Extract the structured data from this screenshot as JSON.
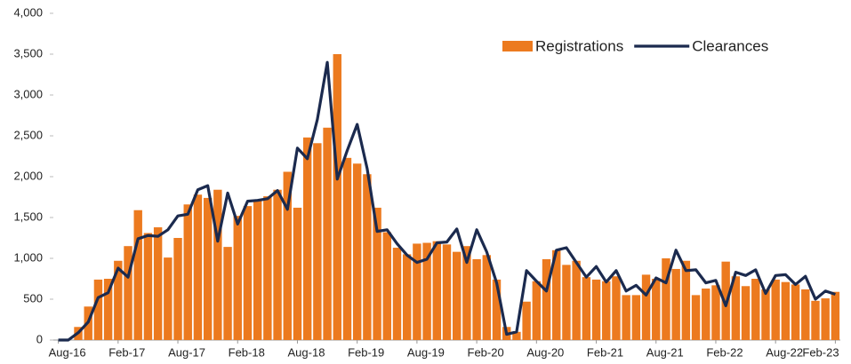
{
  "chart_data": {
    "type": "bar-line",
    "categories": [
      "Aug-16",
      null,
      null,
      null,
      null,
      null,
      "Feb-17",
      null,
      null,
      null,
      null,
      null,
      "Aug-17",
      null,
      null,
      null,
      null,
      null,
      "Feb-18",
      null,
      null,
      null,
      null,
      null,
      "Aug-18",
      null,
      null,
      null,
      null,
      null,
      "Feb-19",
      null,
      null,
      null,
      null,
      null,
      "Aug-19",
      null,
      null,
      null,
      null,
      null,
      "Feb-20",
      null,
      null,
      null,
      null,
      null,
      "Aug-20",
      null,
      null,
      null,
      null,
      null,
      "Feb-21",
      null,
      null,
      null,
      null,
      null,
      "Aug-21",
      null,
      null,
      null,
      null,
      null,
      "Feb-22",
      null,
      null,
      null,
      null,
      null,
      "Aug-22",
      null,
      null,
      null,
      null,
      null,
      "Feb-23"
    ],
    "series": [
      {
        "name": "Registrations",
        "kind": "bar",
        "color": "#ec7a1f",
        "values": [
          0,
          0,
          160,
          410,
          740,
          750,
          970,
          1150,
          1590,
          1310,
          1380,
          1010,
          1250,
          1660,
          1780,
          1740,
          1840,
          1140,
          1520,
          1640,
          1710,
          1760,
          1840,
          2060,
          1620,
          2480,
          2410,
          2600,
          3500,
          2230,
          2160,
          2030,
          1620,
          1320,
          1130,
          1050,
          1180,
          1190,
          1210,
          1170,
          1080,
          1150,
          990,
          1040,
          740,
          160,
          100,
          470,
          720,
          990,
          1100,
          920,
          970,
          770,
          740,
          720,
          780,
          550,
          550,
          800,
          750,
          1000,
          870,
          970,
          550,
          630,
          670,
          960,
          780,
          660,
          750,
          620,
          740,
          710,
          680,
          620,
          480,
          510,
          590
        ]
      },
      {
        "name": "Clearances",
        "kind": "line",
        "color": "#1b2a4e",
        "values": [
          0,
          0,
          90,
          220,
          520,
          580,
          880,
          770,
          1240,
          1280,
          1270,
          1350,
          1520,
          1540,
          1840,
          1890,
          1210,
          1800,
          1420,
          1700,
          1710,
          1730,
          1830,
          1600,
          2350,
          2220,
          2700,
          3400,
          1970,
          2320,
          2640,
          2100,
          1330,
          1350,
          1180,
          1040,
          950,
          990,
          1190,
          1200,
          1360,
          950,
          1350,
          1080,
          700,
          70,
          100,
          850,
          720,
          600,
          1100,
          1130,
          950,
          770,
          900,
          710,
          850,
          600,
          670,
          550,
          760,
          700,
          1100,
          850,
          860,
          700,
          730,
          420,
          830,
          790,
          860,
          570,
          790,
          800,
          680,
          780,
          500,
          600,
          560
        ]
      }
    ],
    "ylim": [
      0,
      4000
    ],
    "yticks": [
      0,
      500,
      {
        "value": 1000,
        "label": "1,000"
      },
      {
        "value": 1500,
        "label": "1,500"
      },
      {
        "value": 2000,
        "label": "2,000"
      },
      {
        "value": 2500,
        "label": "2,500"
      },
      {
        "value": 3000,
        "label": "3,000"
      },
      {
        "value": 3500,
        "label": "3,500"
      },
      {
        "value": 4000,
        "label": "4,000"
      }
    ],
    "legend": "top-right"
  }
}
